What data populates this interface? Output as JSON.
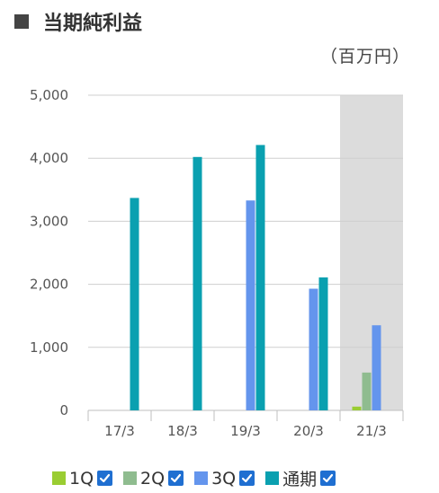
{
  "title": "当期純利益",
  "unit": "（百万円）",
  "chart_data": {
    "type": "bar",
    "title": "当期純利益",
    "ylabel": "（百万円）",
    "categories": [
      "17/3",
      "18/3",
      "19/3",
      "20/3",
      "21/3"
    ],
    "series": [
      {
        "name": "1Q",
        "color": "#9acd32",
        "values": [
          null,
          null,
          null,
          null,
          60
        ]
      },
      {
        "name": "2Q",
        "color": "#8fbc8f",
        "values": [
          null,
          null,
          null,
          null,
          600
        ]
      },
      {
        "name": "3Q",
        "color": "#6495ed",
        "values": [
          null,
          null,
          3330,
          1930,
          1350
        ]
      },
      {
        "name": "通期",
        "color": "#0aa0b0",
        "values": [
          3370,
          4020,
          4210,
          2110,
          null
        ]
      }
    ],
    "ylim": [
      0,
      5000
    ],
    "yticks": [
      "0",
      "1,000",
      "2,000",
      "3,000",
      "4,000",
      "5,000"
    ],
    "ytick_values": [
      0,
      1000,
      2000,
      3000,
      4000,
      5000
    ],
    "highlight_category": "21/3",
    "highlight_color": "#dcdcdc",
    "grid": true
  },
  "legend": [
    {
      "label": "1Q",
      "color": "#9acd32",
      "checked": true
    },
    {
      "label": "2Q",
      "color": "#8fbc8f",
      "checked": true
    },
    {
      "label": "3Q",
      "color": "#6495ed",
      "checked": true
    },
    {
      "label": "通期",
      "color": "#0aa0b0",
      "checked": true
    }
  ]
}
